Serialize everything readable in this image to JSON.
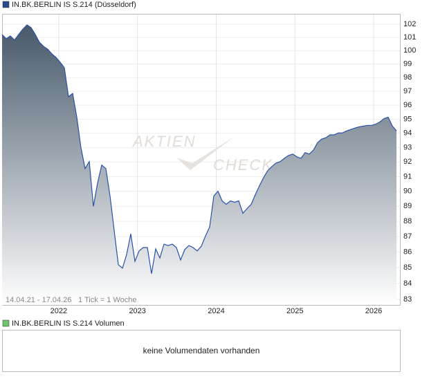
{
  "chart_data": {
    "type": "area",
    "title": "IN.BK.BERLIN IS S.214 (Düsseldorf)",
    "date_range": "14.04.21 - 17.04.26",
    "tick_note": "1 Tick = 1 Woche",
    "watermark": [
      "AKTIEN",
      "CHECK"
    ],
    "log_scale": true,
    "grid": true,
    "color": "#2a50a8",
    "legend_color": "#2a4a8c",
    "xlim": [
      2021.28,
      2026.29
    ],
    "xticks": [
      2022,
      2023,
      2024,
      2025,
      2026
    ],
    "ylim": [
      82.66,
      102.8
    ],
    "yticks": [
      83,
      84,
      85,
      86,
      87,
      88,
      89,
      90,
      91,
      92,
      93,
      94,
      95,
      96,
      97,
      98,
      99,
      100,
      101,
      102
    ],
    "values": [
      101.22,
      100.9,
      101.11,
      100.8,
      101.22,
      101.63,
      101.95,
      101.74,
      101.22,
      100.63,
      100.32,
      100.11,
      99.76,
      99.5,
      99.14,
      98.73,
      96.61,
      96.85,
      95.14,
      92.98,
      91.55,
      92.03,
      88.99,
      90.57,
      91.79,
      91.55,
      89.69,
      87.4,
      85.19,
      84.97,
      85.84,
      87.18,
      85.4,
      86.07,
      86.29,
      86.29,
      84.62,
      86.2,
      85.62,
      86.51,
      86.42,
      86.51,
      86.29,
      85.49,
      86.16,
      86.42,
      86.29,
      86.07,
      86.38,
      87.04,
      87.63,
      89.69,
      90.01,
      89.36,
      89.13,
      89.36,
      89.27,
      89.36,
      88.53,
      88.85,
      89.13,
      89.78,
      90.38,
      90.94,
      91.41,
      91.69,
      91.93,
      92.03,
      92.26,
      92.45,
      92.55,
      92.36,
      92.26,
      92.65,
      92.55,
      92.83,
      93.35,
      93.6,
      93.69,
      93.89,
      93.89,
      94.03,
      94.03,
      94.17,
      94.27,
      94.37,
      94.46,
      94.51,
      94.56,
      94.56,
      94.65,
      94.8,
      95.04,
      95.14,
      94.51,
      94.17
    ]
  },
  "volume": {
    "title": "IN.BK.BERLIN IS S.214 Volumen",
    "message": "keine Volumendaten vorhanden",
    "legend_color": "#6cc46c"
  }
}
